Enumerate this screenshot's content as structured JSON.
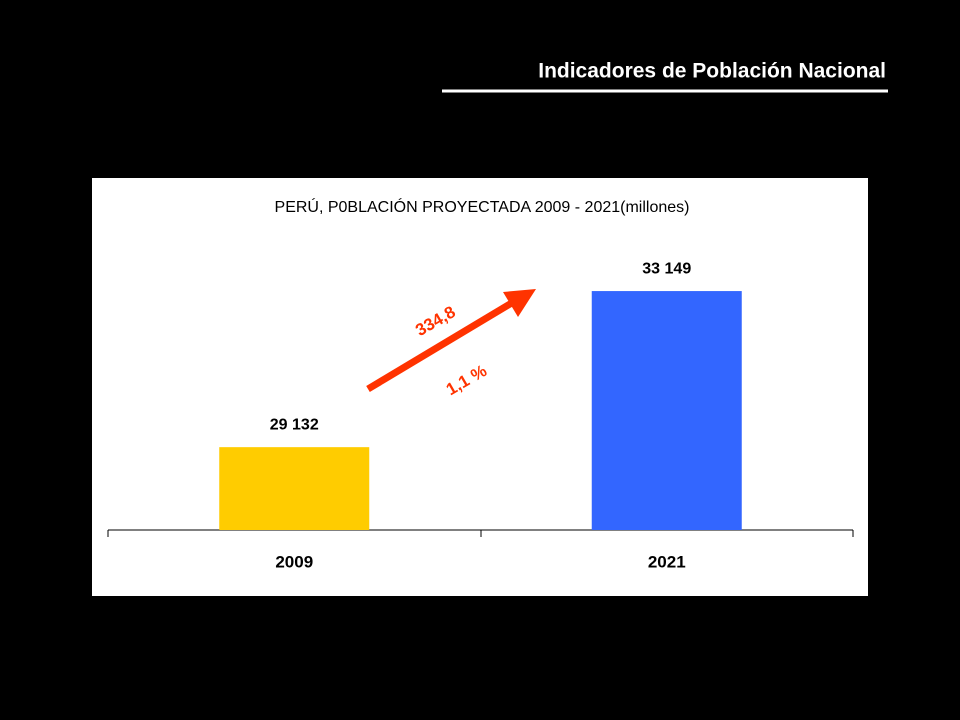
{
  "header": {
    "title": "Indicadores de Población Nacional"
  },
  "chart_data": {
    "type": "bar",
    "title": "PERÚ, P0BLACIÓN PROYECTADA 2009 - 2021(millones)",
    "categories": [
      "2009",
      "2021"
    ],
    "values": [
      29132,
      33149
    ],
    "value_labels": [
      "29 132",
      "33 149"
    ],
    "colors": [
      "#FFCC00",
      "#3366FF"
    ],
    "ylim": [
      27000,
      34000
    ],
    "annotations": [
      "334,8",
      "1,1 %"
    ],
    "annotation_color": "#FF3300"
  }
}
